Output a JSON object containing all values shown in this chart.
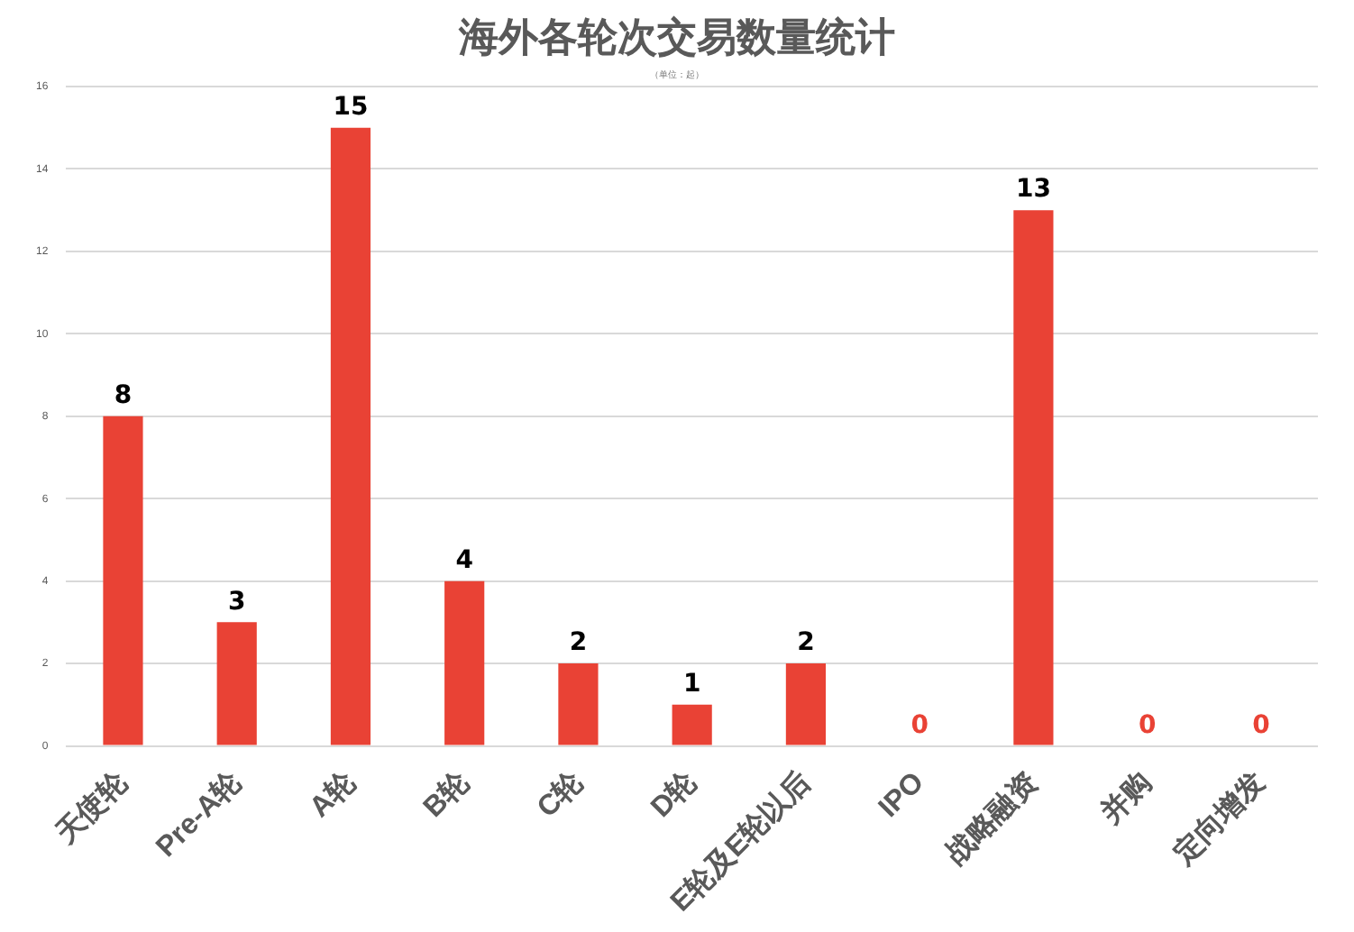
{
  "chart_data": {
    "type": "bar",
    "title": "海外各轮次交易数量统计",
    "subtitle": "（单位：起）",
    "categories": [
      "天使轮",
      "Pre-A轮",
      "A轮",
      "B轮",
      "C轮",
      "D轮",
      "E轮及E轮以后",
      "IPO",
      "战略融资",
      "并购",
      "定向增发"
    ],
    "values": [
      8,
      3,
      15,
      4,
      2,
      1,
      2,
      0,
      13,
      0,
      0
    ],
    "color": "#e94235",
    "ylim": [
      0,
      16
    ],
    "yticks": [
      0,
      2,
      4,
      6,
      8,
      10,
      12,
      14,
      16
    ],
    "grid": "y",
    "legend": false,
    "data_labels": true
  }
}
